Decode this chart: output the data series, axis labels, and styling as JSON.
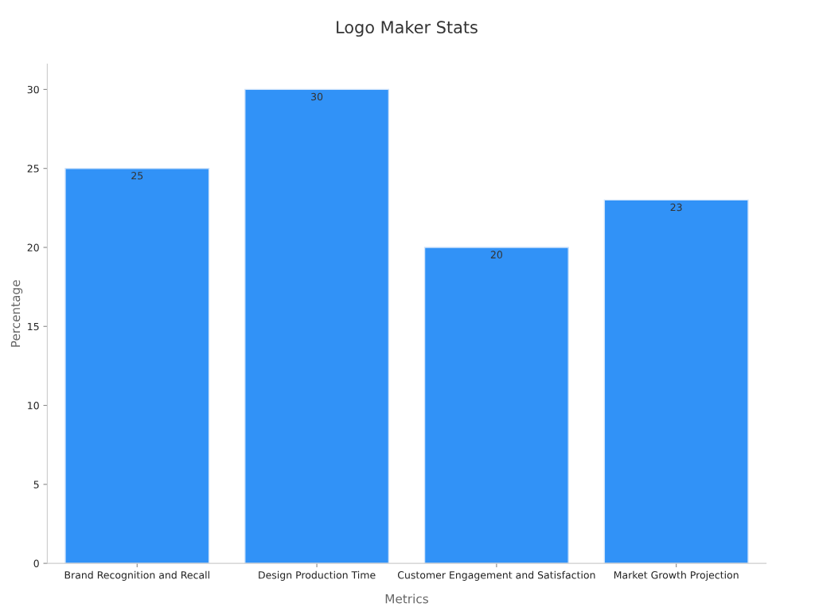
{
  "chart_data": {
    "type": "bar",
    "title": "Logo Maker Stats",
    "xlabel": "Metrics",
    "ylabel": "Percentage",
    "categories": [
      "Brand Recognition and Recall",
      "Design Production Time",
      "Customer Engagement and Satisfaction",
      "Market Growth Projection"
    ],
    "values": [
      25,
      30,
      20,
      23
    ],
    "color": "#3192f7",
    "ylim": [
      0,
      31.6
    ],
    "yticks": [
      0,
      5,
      10,
      15,
      20,
      25,
      30
    ],
    "grid": false,
    "data_labels": true
  }
}
